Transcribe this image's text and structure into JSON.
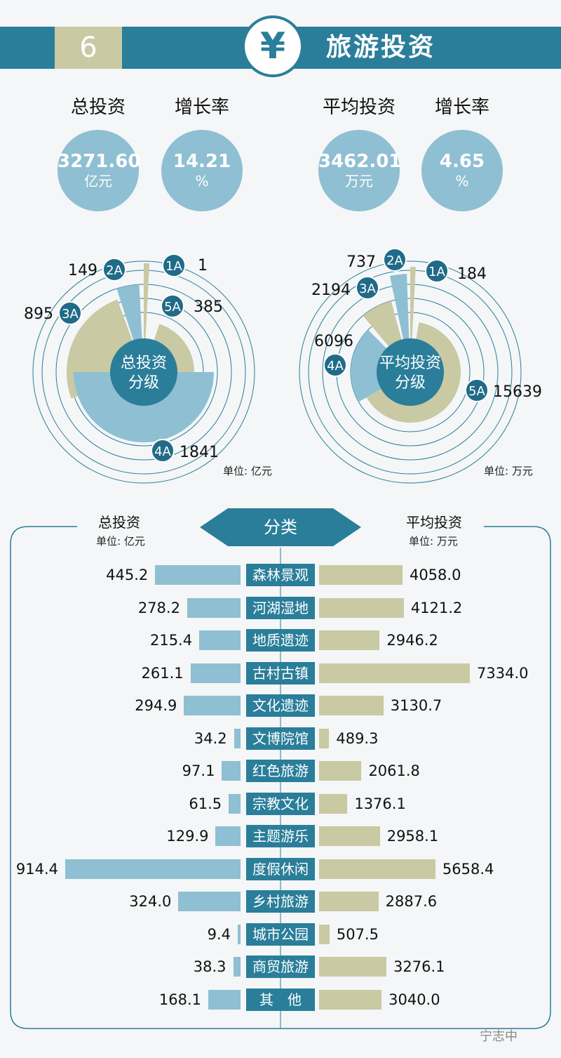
{
  "header": {
    "number": "6",
    "symbol": "¥",
    "title": "旅游投资"
  },
  "stats": [
    {
      "label": "总投资",
      "value": "3271.60",
      "unit": "亿元"
    },
    {
      "label": "增长率",
      "value": "14.21",
      "unit": "%"
    },
    {
      "label": "平均投资",
      "value": "3462.01",
      "unit": "万元"
    },
    {
      "label": "增长率",
      "value": "4.65",
      "unit": "%"
    }
  ],
  "chart_data": [
    {
      "type": "pie",
      "title": "总投资分级",
      "unit": "单位: 亿元",
      "slices": [
        {
          "grade": "1A",
          "value": 1
        },
        {
          "grade": "2A",
          "value": 149
        },
        {
          "grade": "3A",
          "value": 895
        },
        {
          "grade": "4A",
          "value": 1841
        },
        {
          "grade": "5A",
          "value": 385
        }
      ],
      "value_labels": [
        "1",
        "149",
        "895",
        "1841",
        "385"
      ]
    },
    {
      "type": "pie",
      "title": "平均投资分级",
      "unit": "单位: 万元",
      "slices": [
        {
          "grade": "1A",
          "value": 184
        },
        {
          "grade": "2A",
          "value": 737
        },
        {
          "grade": "3A",
          "value": 2194
        },
        {
          "grade": "4A",
          "value": 6096
        },
        {
          "grade": "5A",
          "value": 15639
        }
      ],
      "value_labels": [
        "184",
        "737",
        "2194",
        "6096",
        "15639"
      ]
    },
    {
      "type": "bar",
      "title": "分类",
      "left_header": "总投资",
      "left_unit": "单位: 亿元",
      "right_header": "平均投资",
      "right_unit": "单位: 万元",
      "categories": [
        "森林景观",
        "河湖湿地",
        "地质遗迹",
        "古村古镇",
        "文化遗迹",
        "文博院馆",
        "红色旅游",
        "宗教文化",
        "主题游乐",
        "度假休闲",
        "乡村旅游",
        "城市公园",
        "商贸旅游",
        "其　他"
      ],
      "series": [
        {
          "name": "总投资",
          "values": [
            445.2,
            278.2,
            215.4,
            261.1,
            294.9,
            34.2,
            97.1,
            61.5,
            129.9,
            914.4,
            324.0,
            9.4,
            38.3,
            168.1
          ],
          "labels": [
            "445.2",
            "278.2",
            "215.4",
            "261.1",
            "294.9",
            "34.2",
            "97.1",
            "61.5",
            "129.9",
            "914.4",
            "324.0",
            "9.4",
            "38.3",
            "168.1"
          ]
        },
        {
          "name": "平均投资",
          "values": [
            4058.0,
            4121.2,
            2946.2,
            7334.0,
            3130.7,
            489.3,
            2061.8,
            1376.1,
            2958.1,
            5658.4,
            2887.6,
            507.5,
            3276.1,
            3040.0
          ],
          "labels": [
            "4058.0",
            "4121.2",
            "2946.2",
            "7334.0",
            "3130.7",
            "489.3",
            "2061.8",
            "1376.1",
            "2958.1",
            "5658.4",
            "2887.6",
            "507.5",
            "3276.1",
            "3040.0"
          ]
        }
      ]
    }
  ],
  "colors": {
    "primary": "#2a7e99",
    "light_blue": "#8fbfd2",
    "khaki": "#c9c9a3"
  },
  "watermark": "宁志中"
}
